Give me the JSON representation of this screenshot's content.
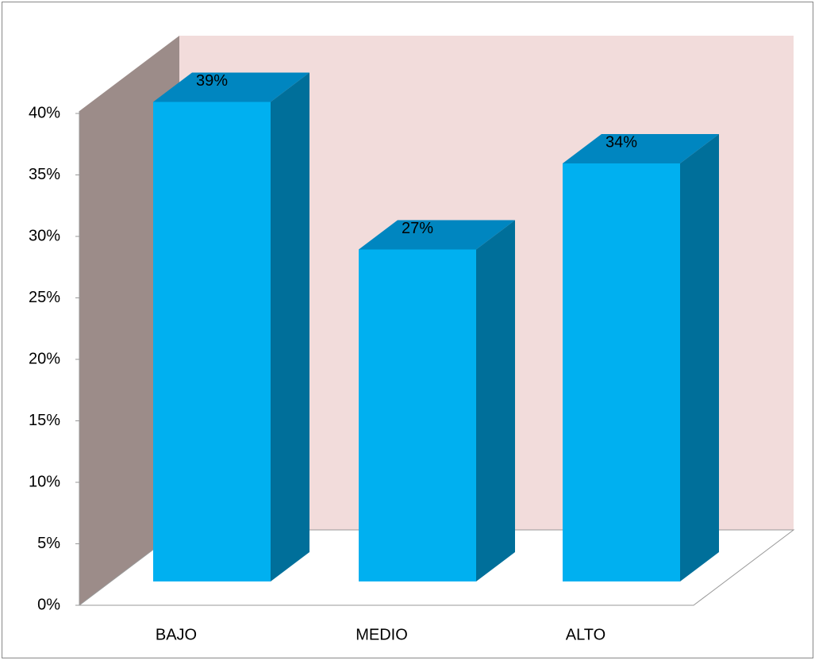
{
  "chart_data": {
    "type": "bar3d",
    "categories": [
      "BAJO",
      "MEDIO",
      "ALTO"
    ],
    "values": [
      39,
      27,
      34
    ],
    "value_labels": [
      "39%",
      "27%",
      "34%"
    ],
    "color": "#00b0f0",
    "ylim": [
      0,
      40
    ],
    "yticks": [
      {
        "value": 0,
        "label": "0%"
      },
      {
        "value": 5,
        "label": "5%"
      },
      {
        "value": 10,
        "label": "10%"
      },
      {
        "value": 15,
        "label": "15%"
      },
      {
        "value": 20,
        "label": "20%"
      },
      {
        "value": 25,
        "label": "25%"
      },
      {
        "value": 30,
        "label": "30%"
      },
      {
        "value": 35,
        "label": "35%"
      },
      {
        "value": 40,
        "label": "40%"
      }
    ],
    "grid": false
  }
}
